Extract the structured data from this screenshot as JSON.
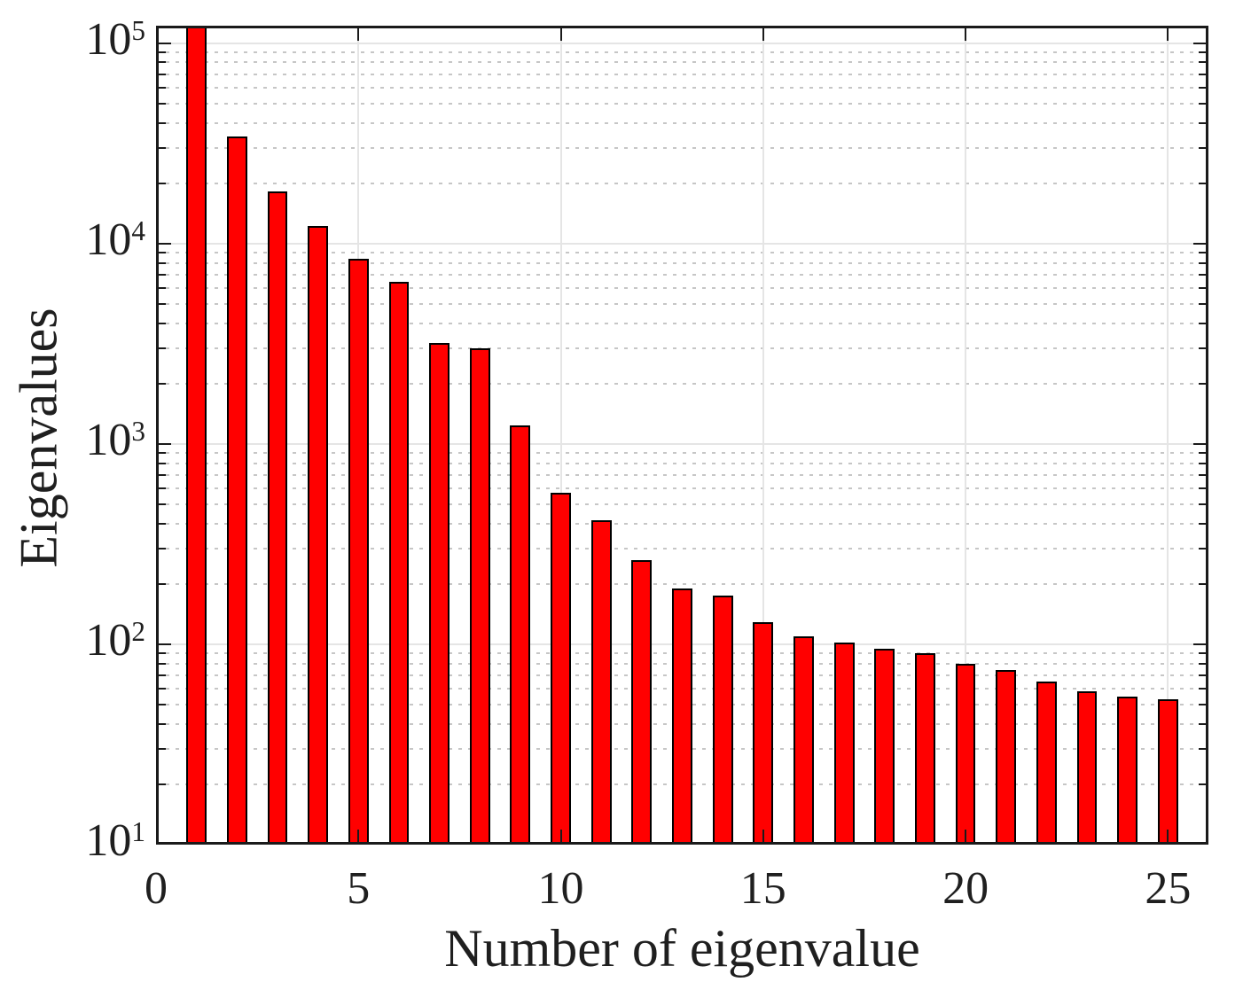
{
  "chart_data": {
    "type": "bar",
    "title": "",
    "xlabel": "Number of eigenvalue",
    "ylabel": "Eigenvalues",
    "yscale": "log",
    "xlim": [
      0,
      26
    ],
    "ylim": [
      10,
      122000
    ],
    "x": [
      1,
      2,
      3,
      4,
      5,
      6,
      7,
      8,
      9,
      10,
      11,
      12,
      13,
      14,
      15,
      16,
      17,
      18,
      19,
      20,
      21,
      22,
      23,
      24,
      25
    ],
    "values": [
      122000,
      34000,
      18200,
      12200,
      8400,
      6450,
      3200,
      3000,
      1230,
      570,
      415,
      263,
      190,
      175,
      129,
      110,
      102,
      95,
      90,
      80,
      74,
      65,
      58,
      55,
      53
    ],
    "bar_width": 0.5,
    "xticks": [
      0,
      5,
      10,
      15,
      20,
      25
    ],
    "x_tick_labels": [
      "0",
      "5",
      "10",
      "15",
      "20",
      "25"
    ],
    "y_tick_exponents": [
      1,
      2,
      3,
      4,
      5
    ],
    "y_tick_base": "10",
    "grid": true,
    "minor_grid": true,
    "legend": null,
    "note": "first bar clipped at top of axes"
  },
  "style": {
    "background": "#ffffff",
    "bar_fill": "#ff0000",
    "bar_edge": "#000000",
    "axis_color": "#1a1a1a",
    "grid_major_color": "#e5e5e5",
    "grid_minor_color": "#c6c6c6",
    "text_color": "#1f1f1f"
  }
}
